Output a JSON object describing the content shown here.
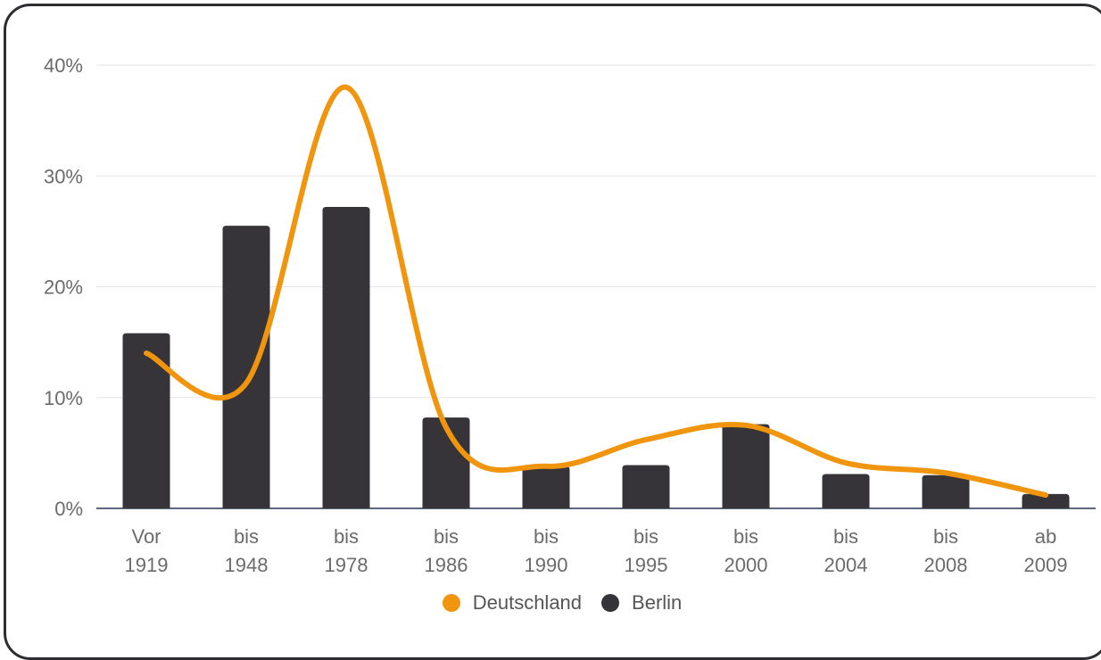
{
  "chart_data": {
    "type": "bar",
    "categories": [
      [
        "Vor",
        "1919"
      ],
      [
        "bis",
        "1948"
      ],
      [
        "bis",
        "1978"
      ],
      [
        "bis",
        "1986"
      ],
      [
        "bis",
        "1990"
      ],
      [
        "bis",
        "1995"
      ],
      [
        "bis",
        "2000"
      ],
      [
        "bis",
        "2004"
      ],
      [
        "bis",
        "2008"
      ],
      [
        "ab",
        "2009"
      ]
    ],
    "yticks": [
      "0%",
      "10%",
      "20%",
      "30%",
      "40%"
    ],
    "ylim": [
      0,
      40
    ],
    "grid": true,
    "legend_position": "bottom-center",
    "series": [
      {
        "name": "Deutschland",
        "kind": "line",
        "color": "#f0950d",
        "values": [
          14,
          11.3,
          38,
          7.3,
          3.8,
          6.2,
          7.5,
          4.1,
          3.2,
          1.2
        ]
      },
      {
        "name": "Berlin",
        "kind": "bar",
        "color": "#363438",
        "values": [
          15.8,
          25.5,
          27.2,
          8.2,
          3.8,
          3.9,
          7.6,
          3.1,
          3.0,
          1.3
        ]
      }
    ]
  }
}
